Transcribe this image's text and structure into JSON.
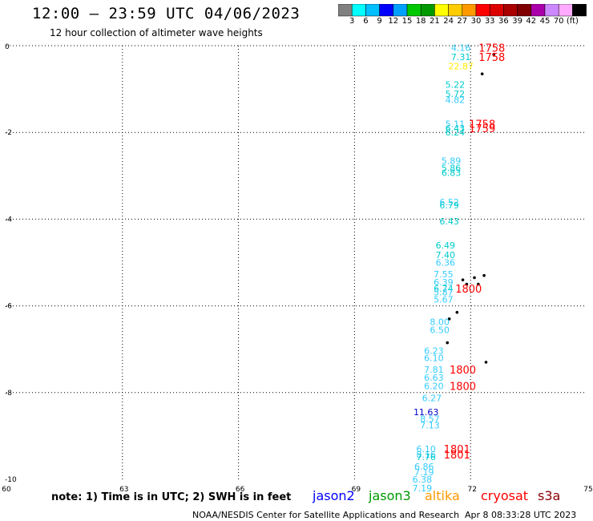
{
  "header": {
    "title": "12:00 – 23:59 UTC 04/06/2023",
    "subtitle": "12 hour collection of altimeter wave heights"
  },
  "colorbar": {
    "swatches": [
      "#808080",
      "#00ffff",
      "#00bfff",
      "#0000ff",
      "#00a0ff",
      "#00c800",
      "#009900",
      "#ffff00",
      "#ffcc00",
      "#ff9900",
      "#ff0000",
      "#dd0000",
      "#aa0000",
      "#800000",
      "#aa00aa",
      "#cc88ff",
      "#ffaaff",
      "#000000"
    ],
    "labels": [
      "3",
      "6",
      "9",
      "12",
      "15",
      "18",
      "21",
      "24",
      "27",
      "30",
      "33",
      "36",
      "39",
      "42",
      "45",
      "70",
      "(ft)"
    ]
  },
  "axes": {
    "x_ticks": [
      "60",
      "63",
      "66",
      "69",
      "72",
      "75"
    ],
    "y_ticks": [
      "0",
      "-2",
      "-4",
      "-6",
      "-8",
      "-10"
    ]
  },
  "observations": [
    {
      "text": "4.16",
      "lon": 71.75,
      "lat": -0.05,
      "color": "#33ccff"
    },
    {
      "text": "7.31",
      "lon": 71.75,
      "lat": -0.26,
      "color": "#00cccc"
    },
    {
      "text": "22.87",
      "lon": 71.75,
      "lat": -0.47,
      "color": "#ffee00"
    },
    {
      "text": "5.22",
      "lon": 71.6,
      "lat": -0.9,
      "color": "#00cccc"
    },
    {
      "text": "5.72",
      "lon": 71.6,
      "lat": -1.11,
      "color": "#00cccc"
    },
    {
      "text": "4.82",
      "lon": 71.6,
      "lat": -1.25,
      "color": "#33ccff"
    },
    {
      "text": "5.11",
      "lon": 71.6,
      "lat": -1.8,
      "color": "#33ccff"
    },
    {
      "text": "6.43",
      "lon": 71.6,
      "lat": -1.9,
      "color": "#00cccc"
    },
    {
      "text": "6.24",
      "lon": 71.6,
      "lat": -2.0,
      "color": "#00cccc"
    },
    {
      "text": "5.89",
      "lon": 71.5,
      "lat": -2.65,
      "color": "#33ccff"
    },
    {
      "text": "5.86",
      "lon": 71.5,
      "lat": -2.82,
      "color": "#00cccc"
    },
    {
      "text": "6.83",
      "lon": 71.5,
      "lat": -2.93,
      "color": "#00cccc"
    },
    {
      "text": "6.52",
      "lon": 71.45,
      "lat": -3.6,
      "color": "#33ccff"
    },
    {
      "text": "6.79",
      "lon": 71.45,
      "lat": -3.68,
      "color": "#00cccc"
    },
    {
      "text": "6.43",
      "lon": 71.45,
      "lat": -4.05,
      "color": "#00cccc"
    },
    {
      "text": "6.49",
      "lon": 71.35,
      "lat": -4.6,
      "color": "#00cccc"
    },
    {
      "text": "7.40",
      "lon": 71.35,
      "lat": -4.82,
      "color": "#00cccc"
    },
    {
      "text": "6.36",
      "lon": 71.35,
      "lat": -5.0,
      "color": "#33ccff"
    },
    {
      "text": "7.55",
      "lon": 71.3,
      "lat": -5.27,
      "color": "#33ccff"
    },
    {
      "text": "6.39",
      "lon": 71.3,
      "lat": -5.45,
      "color": "#33ccff"
    },
    {
      "text": "6.74",
      "lon": 71.3,
      "lat": -5.6,
      "color": "#00cccc"
    },
    {
      "text": "5.87",
      "lon": 71.3,
      "lat": -5.68,
      "color": "#33ccff"
    },
    {
      "text": "5.67",
      "lon": 71.3,
      "lat": -5.85,
      "color": "#33ccff"
    },
    {
      "text": "8.00",
      "lon": 71.2,
      "lat": -6.37,
      "color": "#33ccff"
    },
    {
      "text": "6.50",
      "lon": 71.2,
      "lat": -6.55,
      "color": "#33ccff"
    },
    {
      "text": "6.23",
      "lon": 71.05,
      "lat": -7.03,
      "color": "#33ccff"
    },
    {
      "text": "6.10",
      "lon": 71.05,
      "lat": -7.2,
      "color": "#33ccff"
    },
    {
      "text": "7.81",
      "lon": 71.05,
      "lat": -7.47,
      "color": "#33ccff"
    },
    {
      "text": "6.63",
      "lon": 71.05,
      "lat": -7.65,
      "color": "#33ccff"
    },
    {
      "text": "6.20",
      "lon": 71.05,
      "lat": -7.85,
      "color": "#33ccff"
    },
    {
      "text": "6.27",
      "lon": 71.0,
      "lat": -8.12,
      "color": "#33ccff"
    },
    {
      "text": "11.63",
      "lon": 70.85,
      "lat": -8.45,
      "color": "#0000cc"
    },
    {
      "text": "8.57",
      "lon": 70.95,
      "lat": -8.6,
      "color": "#33ccff"
    },
    {
      "text": "7.13",
      "lon": 70.95,
      "lat": -8.75,
      "color": "#33ccff"
    },
    {
      "text": "6.10",
      "lon": 70.85,
      "lat": -9.3,
      "color": "#33ccff"
    },
    {
      "text": "8.16",
      "lon": 70.85,
      "lat": -9.43,
      "color": "#33ccff"
    },
    {
      "text": "7.76",
      "lon": 70.85,
      "lat": -9.48,
      "color": "#00cccc"
    },
    {
      "text": "6.86",
      "lon": 70.8,
      "lat": -9.7,
      "color": "#33ccff"
    },
    {
      "text": "7.19",
      "lon": 70.8,
      "lat": -9.83,
      "color": "#33ccff"
    },
    {
      "text": "6.38",
      "lon": 70.75,
      "lat": -10.0,
      "color": "#33ccff"
    },
    {
      "text": "7.19",
      "lon": 70.75,
      "lat": -10.2,
      "color": "#33ccff"
    }
  ],
  "time_labels": [
    {
      "text": "1758",
      "lon": 72.55,
      "lat": -0.05,
      "color": "#ff0000"
    },
    {
      "text": "1758",
      "lon": 72.55,
      "lat": -0.26,
      "color": "#ff0000"
    },
    {
      "text": "1758",
      "lon": 72.3,
      "lat": -1.8,
      "color": "#ff0000"
    },
    {
      "text": "1759",
      "lon": 72.3,
      "lat": -1.9,
      "color": "#ff0000"
    },
    {
      "text": "1800",
      "lon": 71.95,
      "lat": -5.6,
      "color": "#ff0000"
    },
    {
      "text": "1800",
      "lon": 71.8,
      "lat": -7.47,
      "color": "#ff0000"
    },
    {
      "text": "1800",
      "lon": 71.8,
      "lat": -7.85,
      "color": "#ff0000"
    },
    {
      "text": "1801",
      "lon": 71.65,
      "lat": -9.3,
      "color": "#ff0000"
    },
    {
      "text": "1801",
      "lon": 71.65,
      "lat": -9.43,
      "color": "#ff0000"
    }
  ],
  "footer": {
    "note": "note: 1) Time is in UTC; 2) SWH is in feet",
    "satellites": [
      {
        "name": "jason2",
        "color": "#0000ff"
      },
      {
        "name": "jason3",
        "color": "#009900"
      },
      {
        "name": "altika",
        "color": "#ff9900"
      },
      {
        "name": "cryosat",
        "color": "#ff0000"
      },
      {
        "name": "s3a",
        "color": "#880000"
      }
    ],
    "credit": "NOAA/NESDIS Center for Satellite Applications and Research",
    "timestamp": "Apr  8 08:33:28 UTC 2023"
  }
}
